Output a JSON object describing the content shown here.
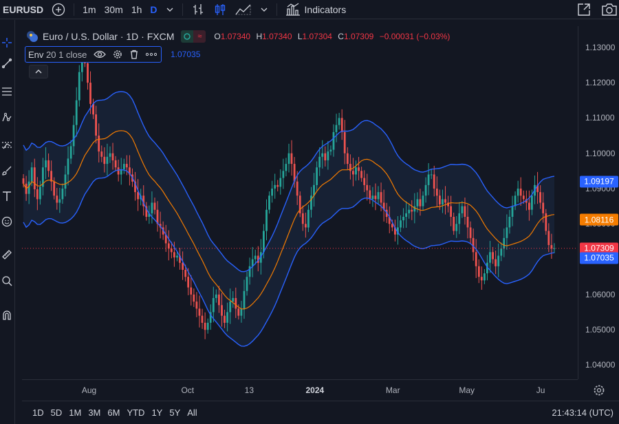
{
  "toolbar": {
    "symbol": "EURUSD",
    "intervals": [
      "1m",
      "30m",
      "1h",
      "D"
    ],
    "indicators_label": "Indicators"
  },
  "legend": {
    "title": "Euro / U.S. Dollar · 1D · FXCM",
    "pill_a": "○",
    "pill_b": "≈",
    "ohlc": [
      {
        "key": "O",
        "value": "1.07340"
      },
      {
        "key": "H",
        "value": "1.07340"
      },
      {
        "key": "L",
        "value": "1.07304"
      },
      {
        "key": "C",
        "value": "1.07309"
      },
      {
        "key": "",
        "value": "−0.00031 (−0.03%)"
      }
    ]
  },
  "indicator": {
    "name": "Env",
    "params": "20 1 close",
    "value": "1.07035"
  },
  "price_axis": {
    "ticks": [
      "1.13000",
      "1.12000",
      "1.11000",
      "1.10000",
      "1.09000",
      "1.08000",
      "1.07000",
      "1.06000",
      "1.05000",
      "1.04000"
    ],
    "labels": [
      {
        "value": "1.09197",
        "color": "#2962ff"
      },
      {
        "value": "1.08116",
        "color": "#f57c00"
      },
      {
        "value": "1.07309",
        "color": "#f23645"
      },
      {
        "value": "1.07035",
        "color": "#2962ff"
      }
    ]
  },
  "time_axis": {
    "ticks": [
      {
        "label": "Aug",
        "bold": false
      },
      {
        "label": "Oct",
        "bold": false
      },
      {
        "label": "13",
        "bold": false
      },
      {
        "label": "2024",
        "bold": true
      },
      {
        "label": "Mar",
        "bold": false
      },
      {
        "label": "May",
        "bold": false
      },
      {
        "label": "Ju",
        "bold": false
      }
    ]
  },
  "bottom_bar": {
    "ranges": [
      "1D",
      "5D",
      "1M",
      "3M",
      "6M",
      "YTD",
      "1Y",
      "5Y",
      "All"
    ],
    "clock": "21:43:14 (UTC)"
  },
  "colors": {
    "up": "#26a69a",
    "down": "#ef5350",
    "basis": "#f57c00",
    "band": "#2962ff",
    "band_fill": "#1c2a44",
    "last_price": "#f23645"
  },
  "chart_data": {
    "type": "candlestick",
    "symbol": "EURUSD",
    "timeframe": "1D",
    "ylim": [
      1.036,
      1.136
    ],
    "last_close": 1.07309,
    "closes": [
      1.0914,
      1.0885,
      1.092,
      1.096,
      1.0898,
      1.087,
      1.0905,
      1.096,
      1.098,
      1.095,
      1.092,
      1.088,
      1.086,
      1.087,
      1.09,
      1.094,
      1.0985,
      1.102,
      1.108,
      1.115,
      1.123,
      1.127,
      1.1255,
      1.12,
      1.114,
      1.111,
      1.105,
      1.1005,
      1.099,
      1.097,
      1.099,
      1.1,
      1.098,
      1.096,
      1.094,
      1.0955,
      1.097,
      1.096,
      1.094,
      1.092,
      1.089,
      1.087,
      1.088,
      1.085,
      1.082,
      1.083,
      1.086,
      1.084,
      1.08,
      1.079,
      1.077,
      1.0745,
      1.073,
      1.072,
      1.0705,
      1.071,
      1.069,
      1.067,
      1.065,
      1.062,
      1.06,
      1.058,
      1.056,
      1.054,
      1.052,
      1.05,
      1.052,
      1.055,
      1.059,
      1.06,
      1.057,
      1.054,
      1.052,
      1.055,
      1.058,
      1.059,
      1.056,
      1.054,
      1.056,
      1.061,
      1.065,
      1.068,
      1.07,
      1.071,
      1.069,
      1.072,
      1.078,
      1.084,
      1.088,
      1.09,
      1.091,
      1.0905,
      1.093,
      1.095,
      1.097,
      1.1,
      1.097,
      1.092,
      1.088,
      1.083,
      1.08,
      1.079,
      1.084,
      1.088,
      1.091,
      1.096,
      1.099,
      1.1,
      1.098,
      1.1005,
      1.101,
      1.106,
      1.108,
      1.11,
      1.106,
      1.1,
      1.097,
      1.095,
      1.094,
      1.096,
      1.095,
      1.093,
      1.091,
      1.0895,
      1.087,
      1.088,
      1.087,
      1.089,
      1.086,
      1.084,
      1.082,
      1.08,
      1.079,
      1.077,
      1.079,
      1.081,
      1.082,
      1.083,
      1.084,
      1.0835,
      1.085,
      1.087,
      1.085,
      1.088,
      1.091,
      1.094,
      1.094,
      1.09,
      1.088,
      1.0855,
      1.087,
      1.086,
      1.085,
      1.082,
      1.078,
      1.08,
      1.083,
      1.085,
      1.082,
      1.079,
      1.076,
      1.072,
      1.068,
      1.065,
      1.064,
      1.066,
      1.069,
      1.072,
      1.07,
      1.068,
      1.071,
      1.073,
      1.076,
      1.079,
      1.082,
      1.085,
      1.088,
      1.09,
      1.088,
      1.087,
      1.086,
      1.084,
      1.088,
      1.091,
      1.089,
      1.086,
      1.083,
      1.078,
      1.074,
      1.073,
      1.07309
    ]
  }
}
